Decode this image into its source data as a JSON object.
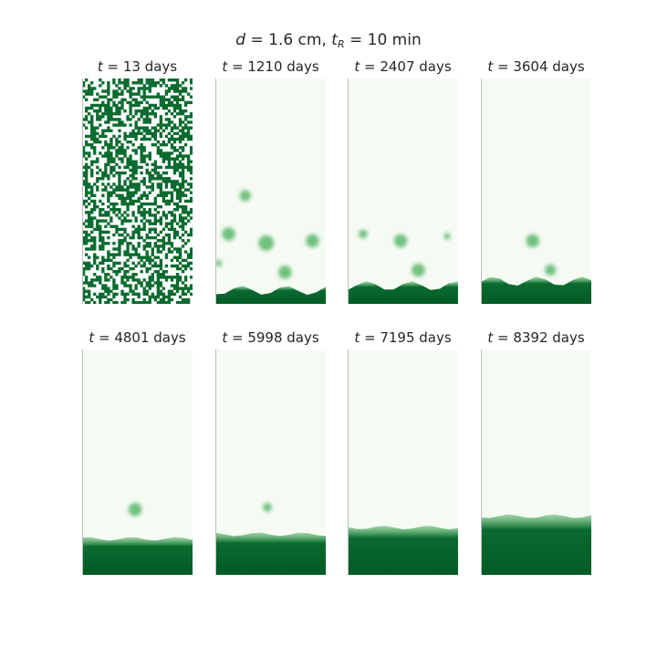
{
  "figure": {
    "title_prefix": "d",
    "title_mid": " = 1.6 cm, ",
    "title_t": "t",
    "title_sub": "R",
    "title_suffix": " = 10 min",
    "panel_prefix": "t",
    "panel_suffix": " days"
  },
  "colors": {
    "bg_light": "#f5fbf3",
    "mid_green": "#5ab66a",
    "dark_green": "#0b6b2f",
    "deep_green": "#005a24"
  },
  "chart_data": {
    "type": "heatmap",
    "colormap": "Greens",
    "panels": [
      {
        "t": 13,
        "label": "13",
        "state": "random"
      },
      {
        "t": 1210,
        "label": "1210",
        "state": "clusters"
      },
      {
        "t": 2407,
        "label": "2407",
        "state": "clusters"
      },
      {
        "t": 3604,
        "label": "3604",
        "state": "settling"
      },
      {
        "t": 4801,
        "label": "4801",
        "state": "settled"
      },
      {
        "t": 5998,
        "label": "5998",
        "state": "settled"
      },
      {
        "t": 7195,
        "label": "7195",
        "state": "settled"
      },
      {
        "t": 8392,
        "label": "8392",
        "state": "settled"
      }
    ]
  }
}
